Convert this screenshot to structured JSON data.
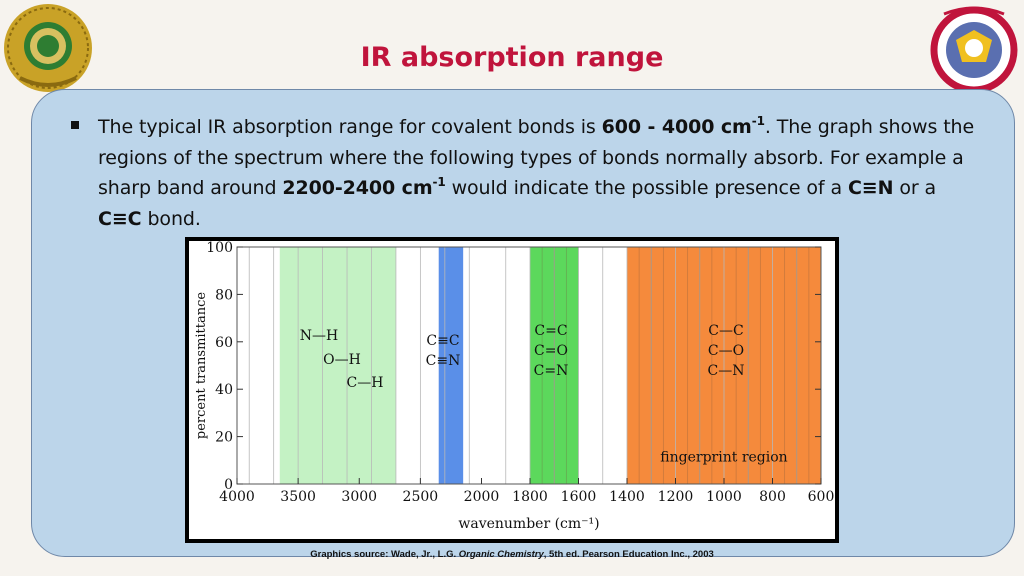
{
  "header": {
    "title": "IR absorption range"
  },
  "body": {
    "p1": "The typical IR absorption range for covalent bonds is ",
    "b1": "600 - 4000 cm",
    "sup1": "-1",
    "p2": ". The graph shows the regions of the spectrum where the following types of bonds normally absorb. For example a sharp band around ",
    "b2": "2200-2400 cm",
    "sup2": "-1",
    "p3": " would indicate the possible presence of a ",
    "b3": "C≡N",
    "p4": " or a ",
    "b4": "C≡C",
    "p5": " bond."
  },
  "chart_data": {
    "type": "area",
    "xlabel": "wavenumber (cm⁻¹)",
    "ylabel": "percent transmittance",
    "x_ticks": [
      4000,
      3500,
      3000,
      2500,
      2000,
      1800,
      1600,
      1400,
      1200,
      1000,
      800,
      600
    ],
    "y_ticks": [
      0,
      20,
      40,
      60,
      80,
      100
    ],
    "ylim": [
      0,
      100
    ],
    "regions": [
      {
        "from": 3650,
        "to": 2700,
        "color": "#c4f2c4",
        "labels": [
          "N—H",
          "O—H",
          "C—H"
        ]
      },
      {
        "from": 2350,
        "to": 2150,
        "color": "#5a8fe8",
        "labels": [
          "C≡C",
          "C≡N"
        ]
      },
      {
        "from": 1800,
        "to": 1600,
        "color": "#5cd85c",
        "labels": [
          "C=C",
          "C=O",
          "C=N"
        ]
      },
      {
        "from": 1400,
        "to": 600,
        "color": "#f58a3c",
        "labels": [
          "C—C",
          "C—O",
          "C—N"
        ],
        "name": "fingerprint region"
      }
    ]
  },
  "caption": {
    "prefix": "Graphics source: Wade, Jr., L.G. ",
    "italic": "Organic Chemistry",
    "suffix": ", 5th ed. Pearson Education Inc., 2003"
  }
}
